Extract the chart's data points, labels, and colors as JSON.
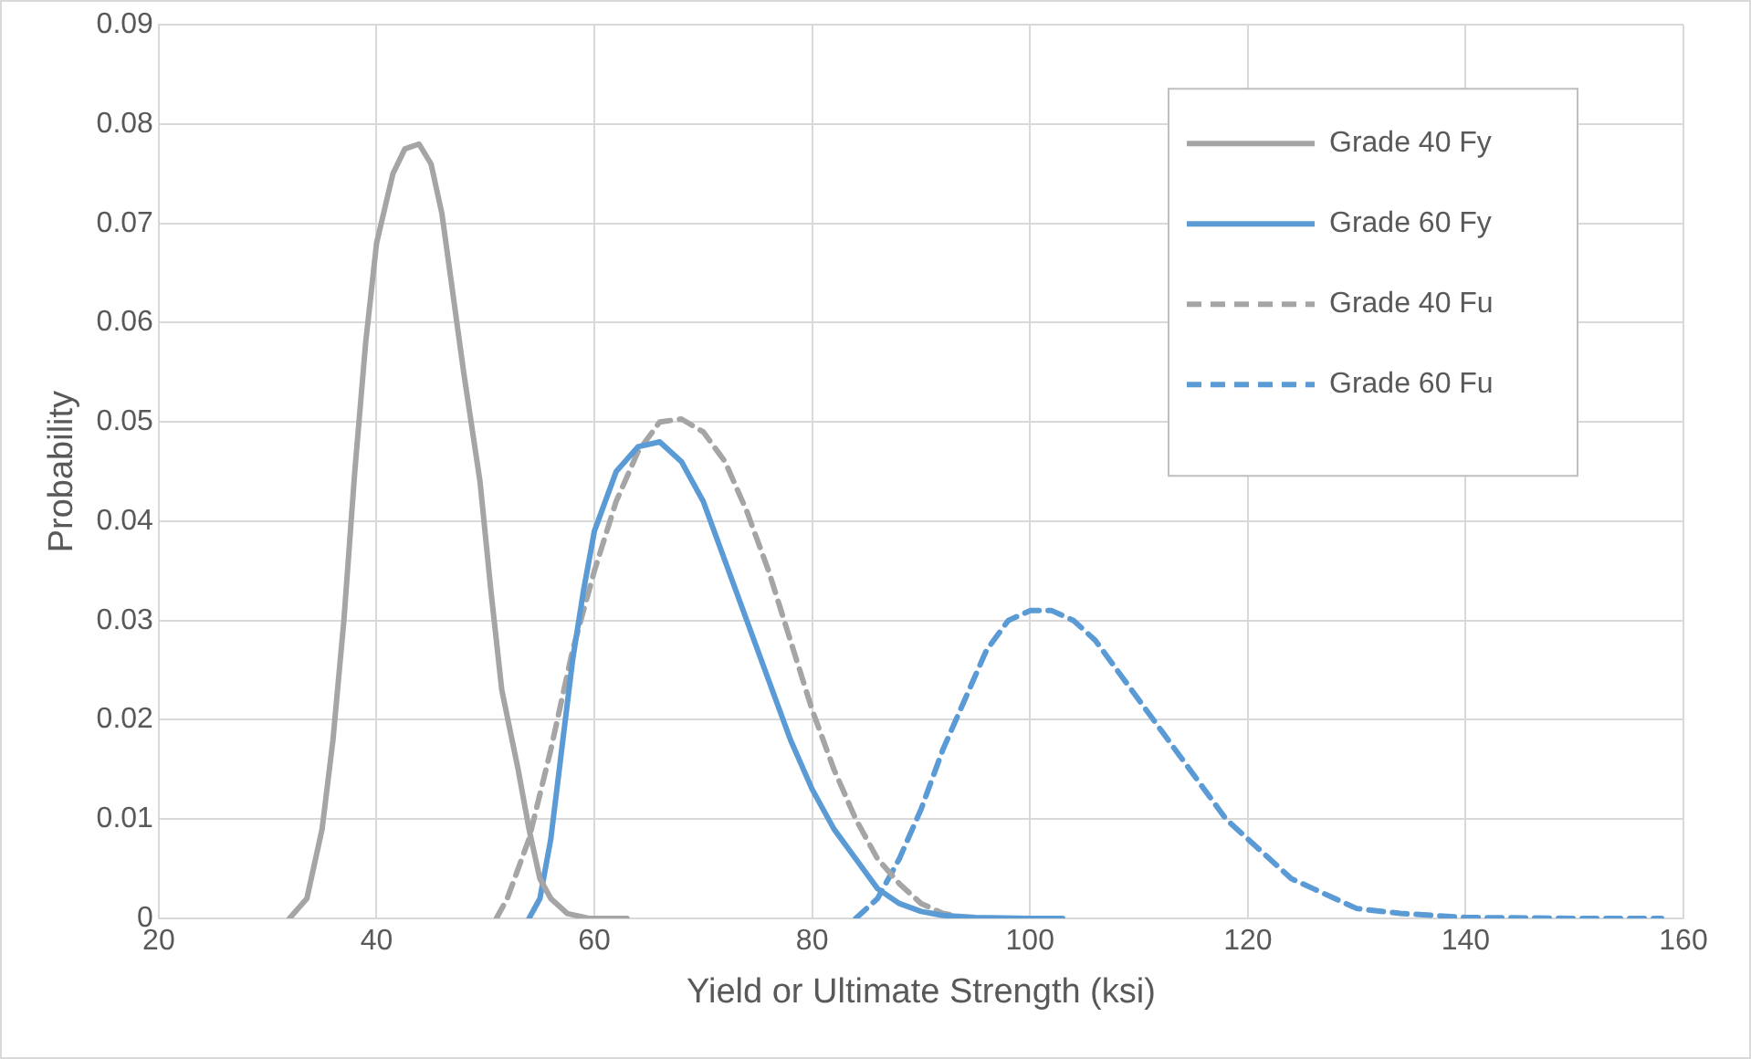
{
  "chart_data": {
    "type": "line",
    "xlabel": "Yield or Ultimate Strength (ksi)",
    "ylabel": "Probability",
    "xlim": [
      20,
      160
    ],
    "xticks": [
      20,
      40,
      60,
      80,
      100,
      120,
      140,
      160
    ],
    "ylim": [
      0,
      0.09
    ],
    "yticks": [
      0,
      0.01,
      0.02,
      0.03,
      0.04,
      0.05,
      0.06,
      0.07,
      0.08,
      0.09
    ],
    "grid": true,
    "legend": "top right",
    "marker": "none",
    "series": [
      {
        "name": "Grade 40 Fy",
        "color": "#a5a5a5",
        "line_style": "solid",
        "x": [
          32,
          33.6,
          35,
          36,
          37,
          38,
          39,
          40,
          41.5,
          42.6,
          43.9,
          45,
          46,
          47,
          48,
          49.5,
          50.5,
          51.5,
          53,
          54,
          55,
          56,
          57.5,
          59.5,
          63
        ],
        "values": [
          0,
          0.002,
          0.009,
          0.018,
          0.03,
          0.045,
          0.058,
          0.068,
          0.075,
          0.0775,
          0.078,
          0.076,
          0.071,
          0.063,
          0.055,
          0.044,
          0.033,
          0.023,
          0.015,
          0.009,
          0.004,
          0.002,
          0.0005,
          0,
          0
        ]
      },
      {
        "name": "Grade 60 Fy",
        "color": "#5b9bd5",
        "line_style": "solid",
        "x": [
          54,
          55,
          56,
          57,
          58,
          59,
          60,
          62,
          64,
          66,
          68,
          70,
          72,
          74,
          76,
          78,
          80,
          82,
          84,
          86,
          88,
          90,
          92,
          95,
          100,
          103
        ],
        "values": [
          0,
          0.002,
          0.008,
          0.017,
          0.026,
          0.033,
          0.039,
          0.045,
          0.0475,
          0.048,
          0.046,
          0.042,
          0.036,
          0.03,
          0.024,
          0.018,
          0.013,
          0.009,
          0.006,
          0.003,
          0.0015,
          0.0007,
          0.0003,
          0.0001,
          0,
          0
        ]
      },
      {
        "name": "Grade 40 Fu",
        "color": "#a5a5a5",
        "line_style": "dashed",
        "x": [
          51,
          52,
          54,
          56,
          58,
          60,
          62,
          64,
          66,
          68,
          70,
          72,
          74,
          76,
          78,
          80,
          82,
          84,
          86,
          88,
          90,
          92,
          94,
          96
        ],
        "values": [
          0,
          0.002,
          0.008,
          0.017,
          0.027,
          0.035,
          0.042,
          0.047,
          0.05,
          0.0503,
          0.049,
          0.046,
          0.041,
          0.035,
          0.028,
          0.021,
          0.015,
          0.01,
          0.006,
          0.0035,
          0.0015,
          0.0005,
          0.0001,
          0
        ]
      },
      {
        "name": "Grade 60 Fu",
        "color": "#5b9bd5",
        "line_style": "dashed",
        "x": [
          84,
          86,
          88,
          90,
          92,
          94,
          96,
          98,
          100,
          102,
          104,
          106,
          108,
          110,
          112,
          114,
          116,
          118,
          120,
          122,
          124,
          126,
          128,
          130,
          134,
          140,
          150,
          158
        ],
        "values": [
          0,
          0.002,
          0.006,
          0.011,
          0.017,
          0.022,
          0.027,
          0.03,
          0.031,
          0.031,
          0.03,
          0.028,
          0.025,
          0.022,
          0.019,
          0.016,
          0.013,
          0.01,
          0.008,
          0.006,
          0.004,
          0.003,
          0.002,
          0.001,
          0.0005,
          0.0001,
          0,
          0
        ]
      }
    ]
  }
}
